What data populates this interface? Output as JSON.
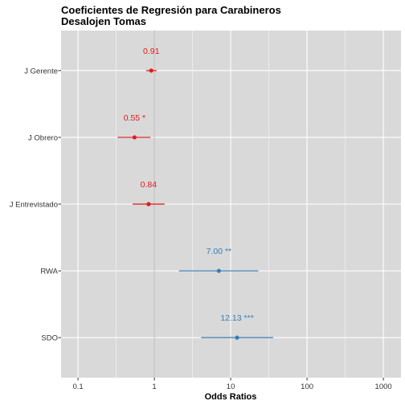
{
  "chart_data": {
    "type": "forest",
    "title_lines": [
      "Coeficientes de Regresión para Carabineros",
      "Desalojen Tomas"
    ],
    "xlabel": "Odds Ratios",
    "ylabel": "",
    "x_scale": "log10",
    "xlim": [
      0.06,
      1700
    ],
    "x_ticks": [
      0.1,
      1,
      10,
      100,
      1000
    ],
    "x_tick_labels": [
      "0.1",
      "1",
      "10",
      "100",
      "1000"
    ],
    "grid": true,
    "legend": "none",
    "colors": {
      "negative": "#e41a1c",
      "positive": "#377eb8",
      "panel": "#d9d9d9",
      "grid": "#ffffff",
      "reference_line": "#bdbdbd"
    },
    "reference_line_x": 1,
    "terms": [
      {
        "label": "J Gerente",
        "estimate": 0.91,
        "ci_low": 0.78,
        "ci_high": 1.07,
        "text": "0.91",
        "group": "negative"
      },
      {
        "label": "J Obrero",
        "estimate": 0.55,
        "ci_low": 0.33,
        "ci_high": 0.89,
        "text": "0.55 *",
        "group": "negative"
      },
      {
        "label": "J Entrevistado",
        "estimate": 0.84,
        "ci_low": 0.52,
        "ci_high": 1.36,
        "text": "0.84",
        "group": "negative"
      },
      {
        "label": "RWA",
        "estimate": 7.0,
        "ci_low": 2.1,
        "ci_high": 23.0,
        "text": "7.00 **",
        "group": "positive"
      },
      {
        "label": "SDO",
        "estimate": 12.13,
        "ci_low": 4.1,
        "ci_high": 36.0,
        "text": "12.13 ***",
        "group": "positive"
      }
    ]
  }
}
